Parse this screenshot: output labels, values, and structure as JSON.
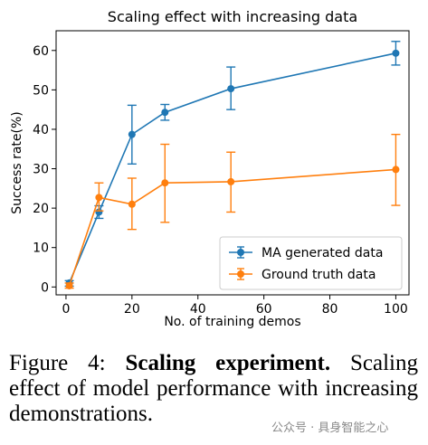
{
  "chart_data": {
    "type": "line",
    "title": "Scaling effect with increasing data",
    "xlabel": "No. of training demos",
    "ylabel": "Success rate(%)",
    "xlim": [
      -3,
      104
    ],
    "ylim": [
      -2,
      65
    ],
    "xticks": [
      0,
      20,
      40,
      60,
      80,
      100
    ],
    "yticks": [
      0,
      10,
      20,
      30,
      40,
      50,
      60
    ],
    "grid": false,
    "legend_position": "bottom-right",
    "series": [
      {
        "name": "MA generated data",
        "color": "#1f77b4",
        "points": [
          {
            "x": 1,
            "y": 1.0,
            "err_low": 0.2,
            "err_high": 1.6
          },
          {
            "x": 10,
            "y": 19.0,
            "err_low": 17.4,
            "err_high": 20.6
          },
          {
            "x": 20,
            "y": 38.7,
            "err_low": 31.2,
            "err_high": 46.1
          },
          {
            "x": 30,
            "y": 44.3,
            "err_low": 42.3,
            "err_high": 46.3
          },
          {
            "x": 50,
            "y": 50.3,
            "err_low": 45.0,
            "err_high": 55.8
          },
          {
            "x": 100,
            "y": 59.3,
            "err_low": 56.3,
            "err_high": 62.3
          }
        ]
      },
      {
        "name": "Ground truth data",
        "color": "#ff7f0e",
        "points": [
          {
            "x": 1,
            "y": 0.3,
            "err_low": -0.3,
            "err_high": 1.0
          },
          {
            "x": 10,
            "y": 22.7,
            "err_low": 19.3,
            "err_high": 26.4
          },
          {
            "x": 20,
            "y": 21.0,
            "err_low": 14.6,
            "err_high": 27.6
          },
          {
            "x": 30,
            "y": 26.4,
            "err_low": 16.4,
            "err_high": 36.2
          },
          {
            "x": 50,
            "y": 26.7,
            "err_low": 19.0,
            "err_high": 34.2
          },
          {
            "x": 100,
            "y": 29.8,
            "err_low": 20.7,
            "err_high": 38.7
          }
        ]
      }
    ]
  },
  "caption": {
    "label": "Figure 4:",
    "bold": "Scaling experiment.",
    "text": "Scaling effect of model performance with increasing demonstrations."
  },
  "watermark": "公众号 · 具身智能之心"
}
